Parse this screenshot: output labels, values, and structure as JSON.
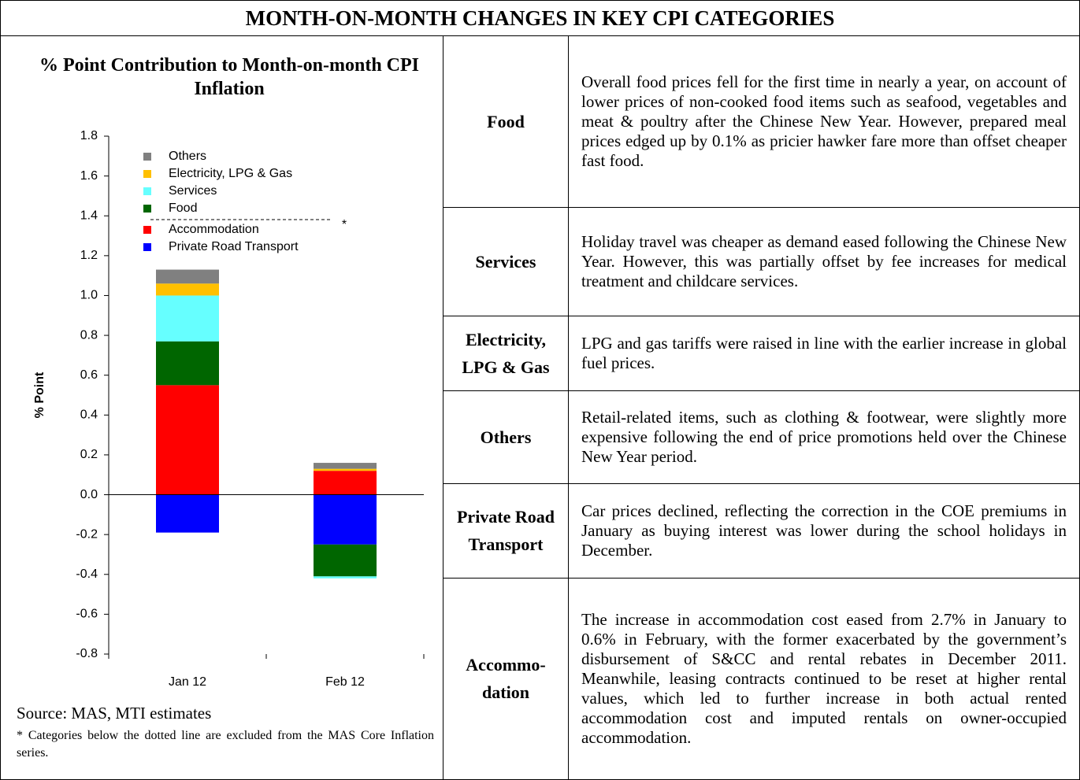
{
  "title": "MONTH-ON-MONTH CHANGES IN KEY CPI CATEGORIES",
  "chart_data": {
    "type": "stacked_bar",
    "title": "% Point Contribution to Month-on-month CPI Inflation",
    "y_label": "% Point",
    "categories": [
      "Jan 12",
      "Feb 12"
    ],
    "series": [
      {
        "name": "Private Road Transport",
        "color": "#0000ff",
        "values": [
          -0.19,
          -0.25
        ]
      },
      {
        "name": "Accommodation",
        "color": "#ff0000",
        "values": [
          0.55,
          0.12
        ]
      },
      {
        "name": "Food",
        "color": "#006600",
        "values": [
          0.22,
          -0.16
        ]
      },
      {
        "name": "Services",
        "color": "#66ffff",
        "values": [
          0.23,
          -0.01
        ]
      },
      {
        "name": "Electricity, LPG & Gas",
        "color": "#ffc000",
        "values": [
          0.06,
          0.01
        ]
      },
      {
        "name": "Others",
        "color": "#808080",
        "values": [
          0.07,
          0.03
        ]
      }
    ],
    "ylim": [
      -0.8,
      1.8
    ],
    "yticks": [
      -0.8,
      -0.6,
      -0.4,
      -0.2,
      {
        "value": 0,
        "label": "0.0"
      },
      0.2,
      0.4,
      0.6,
      0.8,
      {
        "value": 1,
        "label": "1.0"
      },
      1.2,
      1.4,
      1.6,
      1.8
    ],
    "annotation": "*"
  },
  "source": "Source: MAS, MTI estimates",
  "footnote": "* Categories below the dotted line are excluded from the MAS Core Inflation series.",
  "table": {
    "rows": [
      [
        "Food",
        "Overall food prices fell for the first time in nearly a year, on account of lower prices of non-cooked food items such as seafood, vegetables and meat & poultry after the Chinese New Year.  However, prepared meal prices edged up by 0.1% as pricier hawker fare more than offset cheaper fast food."
      ],
      [
        "Services",
        "Holiday travel was cheaper as demand eased following the Chinese New Year.  However, this was partially offset by fee increases for medical treatment and childcare services."
      ],
      [
        "Electricity, LPG & Gas",
        "LPG and gas tariffs were raised in line with the earlier increase in global fuel prices."
      ],
      [
        "Others",
        "Retail-related items, such as clothing & footwear, were slightly more expensive following the end of price promotions held over the Chinese New Year period."
      ],
      [
        "Private Road Transport",
        "Car prices declined, reflecting the correction in the COE premiums in January as buying interest was lower during the school holidays in December."
      ],
      [
        "Accommo-dation",
        "The increase in accommodation cost eased from 2.7% in January to 0.6% in February, with the former exacerbated by the government’s disbursement of S&CC and rental rebates in December 2011.  Meanwhile, leasing contracts continued to be reset at higher rental values, which led to further increase in both actual rented accommodation cost and imputed rentals on owner-occupied accommodation."
      ]
    ]
  }
}
